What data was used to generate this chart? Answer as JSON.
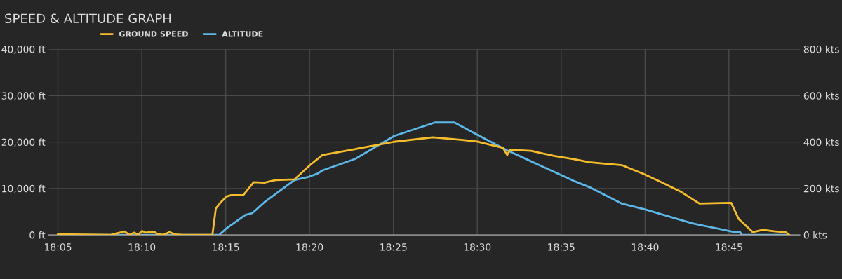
{
  "chart_data": {
    "type": "line",
    "title": "SPEED & ALTITUDE GRAPH",
    "series": [
      {
        "name": "GROUND SPEED",
        "color": "#f5bd2c",
        "axis": "y2",
        "x": [
          18.0833,
          18.1357,
          18.1495,
          18.1545,
          18.1593,
          18.1628,
          18.167,
          18.1705,
          18.1788,
          18.1823,
          18.188,
          18.1942,
          18.1998,
          18.2068,
          18.2368,
          18.2402,
          18.2452,
          18.2507,
          18.2555,
          18.2675,
          18.2778,
          18.2883,
          18.2995,
          18.3183,
          18.3343,
          18.3462,
          18.379,
          18.4173,
          18.4557,
          18.4837,
          18.4997,
          18.5255,
          18.5297,
          18.5325,
          18.5533,
          18.5763,
          18.5973,
          18.6112,
          18.6203,
          18.644,
          18.665,
          18.683,
          18.7018,
          18.7207,
          18.7522,
          18.7598,
          18.7737,
          18.7835,
          18.7947,
          18.8065,
          18.81
        ],
        "values": [
          3,
          0,
          15,
          0,
          10,
          0,
          17,
          10,
          14,
          4,
          0,
          12,
          2,
          0,
          0,
          114,
          141,
          165,
          171,
          171,
          227,
          225,
          236,
          239,
          303,
          344,
          370,
          401,
          420,
          410,
          402,
          375,
          344,
          367,
          362,
          340,
          325,
          313,
          309,
          300,
          263,
          227,
          187,
          135,
          138,
          68,
          12,
          22,
          16,
          11,
          0
        ]
      },
      {
        "name": "ALTITUDE",
        "color": "#5cb8e8",
        "axis": "y",
        "x": [
          18.0833,
          18.2437,
          18.2507,
          18.2695,
          18.2765,
          18.2883,
          18.3183,
          18.3323,
          18.3413,
          18.3462,
          18.379,
          18.4173,
          18.4578,
          18.4773,
          18.4997,
          18.5297,
          18.5973,
          18.6112,
          18.644,
          18.6663,
          18.7137,
          18.7555,
          18.7612,
          18.7625,
          18.81
        ],
        "values": [
          0,
          0,
          1400,
          4300,
          4700,
          7000,
          11800,
          12500,
          13200,
          13900,
          16400,
          21300,
          24200,
          24200,
          21600,
          18200,
          11500,
          10300,
          6700,
          5500,
          2500,
          600,
          600,
          0,
          0
        ]
      }
    ],
    "xlim": [
      18.0743,
      18.8205
    ],
    "xticks": [
      {
        "value": 18.0833,
        "label": "18:05"
      },
      {
        "value": 18.1667,
        "label": "18:10"
      },
      {
        "value": 18.25,
        "label": "18:15"
      },
      {
        "value": 18.3333,
        "label": "18:20"
      },
      {
        "value": 18.4167,
        "label": "18:25"
      },
      {
        "value": 18.5,
        "label": "18:30"
      },
      {
        "value": 18.5833,
        "label": "18:35"
      },
      {
        "value": 18.6667,
        "label": "18:40"
      },
      {
        "value": 18.75,
        "label": "18:45"
      }
    ],
    "ylim": [
      0,
      40000
    ],
    "yticks": [
      {
        "value": 0,
        "label": "0 ft"
      },
      {
        "value": 10000,
        "label": "10,000 ft"
      },
      {
        "value": 20000,
        "label": "20,000 ft"
      },
      {
        "value": 30000,
        "label": "30,000 ft"
      },
      {
        "value": 40000,
        "label": "40,000 ft"
      }
    ],
    "y2lim": [
      0,
      800
    ],
    "y2ticks": [
      {
        "value": 0,
        "label": "0 kts"
      },
      {
        "value": 200,
        "label": "200 kts"
      },
      {
        "value": 400,
        "label": "400 kts"
      },
      {
        "value": 600,
        "label": "600 kts"
      },
      {
        "value": 800,
        "label": "800 kts"
      }
    ],
    "grid": true,
    "legend": "top left",
    "marker": "none",
    "line_style": "solid"
  }
}
